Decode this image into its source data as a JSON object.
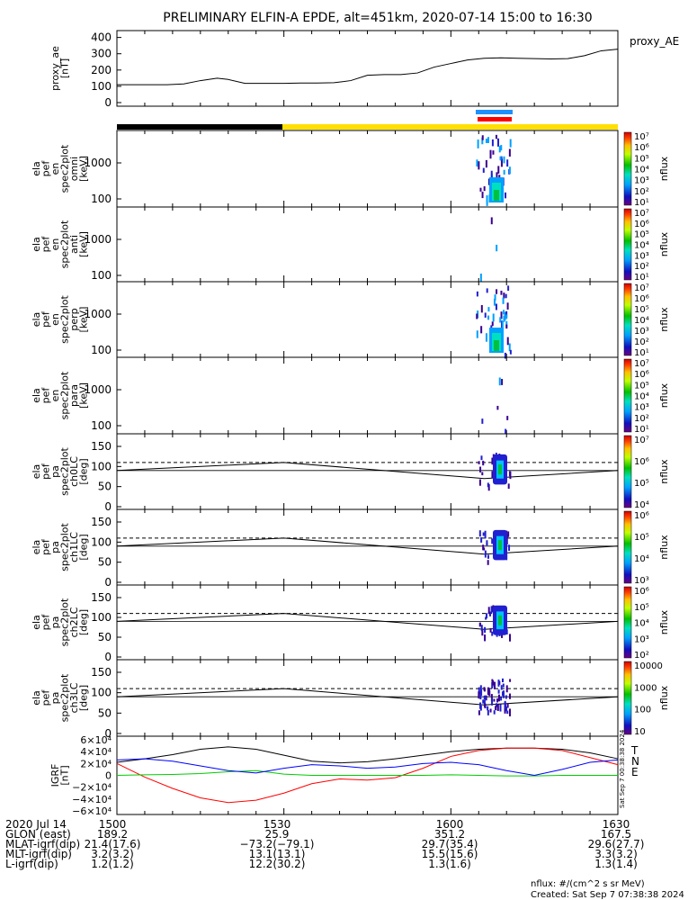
{
  "title": "PRELIMINARY ELFIN-A EPDE, alt=451km, 2020-07-14 15:00 to 16:30",
  "colors": {
    "trace": "#000000",
    "bar_dark": "#000000",
    "bar_sun": "#ffe000",
    "marker_blue": "#1e90ff",
    "marker_red": "#ff0000",
    "grf_t": "#000000",
    "grf_n": "#ff0000",
    "grf_e": "#00cc00",
    "grf_blue": "#0000ff"
  },
  "chart_data": [
    {
      "type": "line",
      "id": "proxy_ae",
      "ylabel": [
        "proxy_ae",
        "[nT]"
      ],
      "legend": "proxy_AE",
      "yticks": [
        "400",
        "300",
        "200",
        "100",
        "0"
      ],
      "ylim": [
        0,
        420
      ],
      "x_minutes": [
        0,
        3,
        6,
        9,
        12,
        15,
        18,
        20,
        23,
        26,
        30,
        33,
        36,
        39,
        42,
        45,
        48,
        51,
        54,
        57,
        60,
        63,
        66,
        69,
        72,
        75,
        78,
        81,
        84,
        87,
        90
      ],
      "values": [
        110,
        110,
        110,
        110,
        115,
        135,
        150,
        142,
        118,
        118,
        118,
        120,
        120,
        122,
        135,
        168,
        172,
        172,
        182,
        218,
        240,
        262,
        272,
        275,
        272,
        270,
        268,
        270,
        288,
        318,
        328
      ]
    },
    {
      "type": "heatmap",
      "id": "omni",
      "ylabel": [
        "ela",
        "pef",
        "en",
        "spec2plot",
        "omni",
        "[keV]"
      ],
      "yticks": [
        "1000",
        "100"
      ],
      "colorbar_label": "nflux",
      "colorbar_ticks": [
        "10⁷",
        "10⁶",
        "10⁵",
        "10⁴",
        "10³",
        "10²",
        "10¹"
      ]
    },
    {
      "type": "heatmap",
      "id": "anti",
      "ylabel": [
        "ela",
        "pef",
        "en",
        "spec2plot",
        "anti",
        "[keV]"
      ],
      "yticks": [
        "1000",
        "100"
      ],
      "colorbar_label": "nflux",
      "colorbar_ticks": [
        "10⁷",
        "10⁶",
        "10⁵",
        "10⁴",
        "10³",
        "10²",
        "10¹"
      ]
    },
    {
      "type": "heatmap",
      "id": "perp",
      "ylabel": [
        "ela",
        "pef",
        "en",
        "spec2plot",
        "perp",
        "[keV]"
      ],
      "yticks": [
        "1000",
        "100"
      ],
      "colorbar_label": "nflux",
      "colorbar_ticks": [
        "10⁷",
        "10⁶",
        "10⁵",
        "10⁴",
        "10³",
        "10²",
        "10¹"
      ]
    },
    {
      "type": "heatmap",
      "id": "para",
      "ylabel": [
        "ela",
        "pef",
        "en",
        "spec2plot",
        "para",
        "[keV]"
      ],
      "yticks": [
        "1000",
        "100"
      ],
      "colorbar_label": "nflux",
      "colorbar_ticks": [
        "10⁷",
        "10⁶",
        "10⁵",
        "10⁴",
        "10³",
        "10²",
        "10¹"
      ]
    },
    {
      "type": "heatmap",
      "id": "ch0LC",
      "ylabel": [
        "ela",
        "pef",
        "pa",
        "spec2plot",
        "ch0LC",
        "[deg]"
      ],
      "yticks": [
        "150",
        "100",
        "50",
        "0"
      ],
      "colorbar_label": "nflux",
      "colorbar_ticks": [
        "10⁷",
        "10⁶",
        "10⁵",
        "10⁴"
      ]
    },
    {
      "type": "heatmap",
      "id": "ch1LC",
      "ylabel": [
        "ela",
        "pef",
        "pa",
        "spec2plot",
        "ch1LC",
        "[deg]"
      ],
      "yticks": [
        "150",
        "100",
        "50",
        "0"
      ],
      "colorbar_label": "nflux",
      "colorbar_ticks": [
        "10⁶",
        "10⁵",
        "10⁴",
        "10³"
      ]
    },
    {
      "type": "heatmap",
      "id": "ch2LC",
      "ylabel": [
        "ela",
        "pef",
        "pa",
        "spec2plot",
        "ch2LC",
        "[deg]"
      ],
      "yticks": [
        "150",
        "100",
        "50",
        "0"
      ],
      "colorbar_label": "nflux",
      "colorbar_ticks": [
        "10⁶",
        "10⁵",
        "10⁴",
        "10³",
        "10²"
      ]
    },
    {
      "type": "heatmap",
      "id": "ch3LC",
      "ylabel": [
        "ela",
        "pef",
        "pa",
        "spec2plot",
        "ch3LC",
        "[deg]"
      ],
      "yticks": [
        "150",
        "100",
        "50",
        "0"
      ],
      "colorbar_label": "nflux",
      "colorbar_ticks": [
        "10000",
        "1000",
        "100",
        "10"
      ]
    },
    {
      "type": "line",
      "id": "igrf",
      "ylabel": [
        "IGRF",
        "[nT]"
      ],
      "yticks": [
        "6×10⁴",
        "4×10⁴",
        "2×10⁴",
        "0",
        "−2×10⁴",
        "−4×10⁴",
        "−6×10⁴"
      ],
      "ylim": [
        -60000,
        60000
      ],
      "legend": [
        "T",
        "N",
        "E"
      ],
      "x_minutes": [
        0,
        5,
        10,
        15,
        20,
        25,
        30,
        35,
        40,
        45,
        50,
        55,
        60,
        65,
        70,
        75,
        80,
        85,
        90
      ],
      "series": [
        {
          "values": [
            22000,
            28000,
            35000,
            44000,
            48000,
            44000,
            34000,
            24000,
            21000,
            23000,
            28000,
            34000,
            40000,
            44000,
            46000,
            46000,
            44000,
            38000,
            28000
          ]
        },
        {
          "values": [
            20000,
            -3000,
            -22000,
            -38000,
            -46000,
            -42000,
            -30000,
            -14000,
            -6000,
            -8000,
            -4000,
            12000,
            32000,
            42000,
            46000,
            46000,
            42000,
            30000,
            18000
          ]
        },
        {
          "values": [
            0,
            1000,
            1500,
            3000,
            6000,
            8000,
            2000,
            0,
            0,
            0,
            0,
            0,
            1000,
            0,
            -1000,
            -1000,
            0,
            0,
            0
          ]
        },
        {
          "values": [
            26000,
            28000,
            24000,
            16000,
            8000,
            4000,
            12000,
            18000,
            16000,
            12000,
            14000,
            20000,
            22000,
            18000,
            8000,
            0,
            10000,
            22000,
            26000
          ]
        }
      ]
    }
  ],
  "footer_text": {
    "rows": [
      {
        "label": "2020 Jul 14",
        "values": [
          "1500",
          "1530",
          "1600",
          "1630"
        ]
      },
      {
        "label": "GLON (east)",
        "values": [
          "189.2",
          "25.9",
          "351.2",
          "167.5"
        ]
      },
      {
        "label": "MLAT-igrf(dip)",
        "values": [
          "21.4(17.6)",
          "−73.2(−79.1)",
          "29.7(35.4)",
          "29.6(27.7)"
        ]
      },
      {
        "label": "MLT-igrf(dip)",
        "values": [
          "3.2(3.2)",
          "13.1(13.1)",
          "15.5(15.6)",
          "3.3(3.2)"
        ]
      },
      {
        "label": "L-igrf(dip)",
        "values": [
          "1.2(1.2)",
          "12.2(30.2)",
          "1.3(1.6)",
          "1.3(1.4)"
        ]
      }
    ],
    "units_note": "nflux: #/(cm^2 s sr MeV)",
    "created": "Created: Sat Sep  7 07:38:38 2024",
    "side_stamp": "Sat Sep  7 00:38:38 2024"
  }
}
